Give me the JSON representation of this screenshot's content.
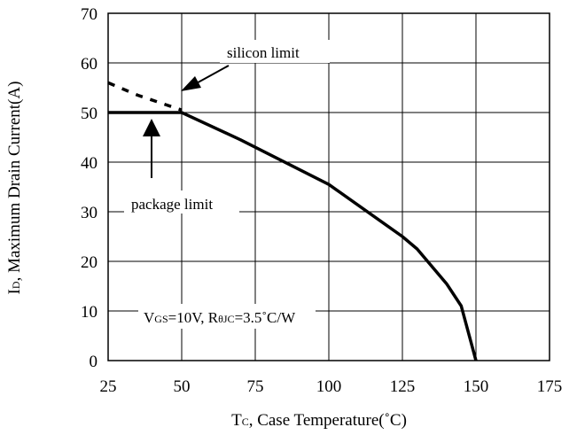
{
  "chart_data": {
    "type": "line",
    "xlabel": {
      "main": "T",
      "sub": "C",
      "rest": ", Case Temperature(˚C)"
    },
    "ylabel": {
      "main": "I",
      "sub": "D",
      "rest": ", Maximum Drain Current(A)"
    },
    "xlim": [
      25,
      175
    ],
    "ylim": [
      0,
      70
    ],
    "xticks": [
      25,
      50,
      75,
      100,
      125,
      150,
      175
    ],
    "yticks": [
      0,
      10,
      20,
      30,
      40,
      50,
      60,
      70
    ],
    "grid": true,
    "series": [
      {
        "style": "solid",
        "x": [
          50,
          70,
          100,
          125,
          130,
          140,
          145,
          150
        ],
        "y": [
          50,
          44.5,
          35.5,
          25,
          22.5,
          15.5,
          11,
          0
        ]
      },
      {
        "style": "solid",
        "x": [
          25,
          50
        ],
        "y": [
          50,
          50
        ]
      },
      {
        "style": "dashed",
        "x": [
          25,
          35,
          45,
          50
        ],
        "y": [
          56,
          53.5,
          51.5,
          50.5
        ]
      }
    ],
    "annotations": {
      "silicon_limit": "silicon limit",
      "package_limit": "package limit",
      "conditions": {
        "v": "V",
        "v_sub": "GS",
        "v_rest": "=10V, R",
        "r_sub": "θJC",
        "r_rest": "=3.5˚C/W"
      }
    }
  }
}
